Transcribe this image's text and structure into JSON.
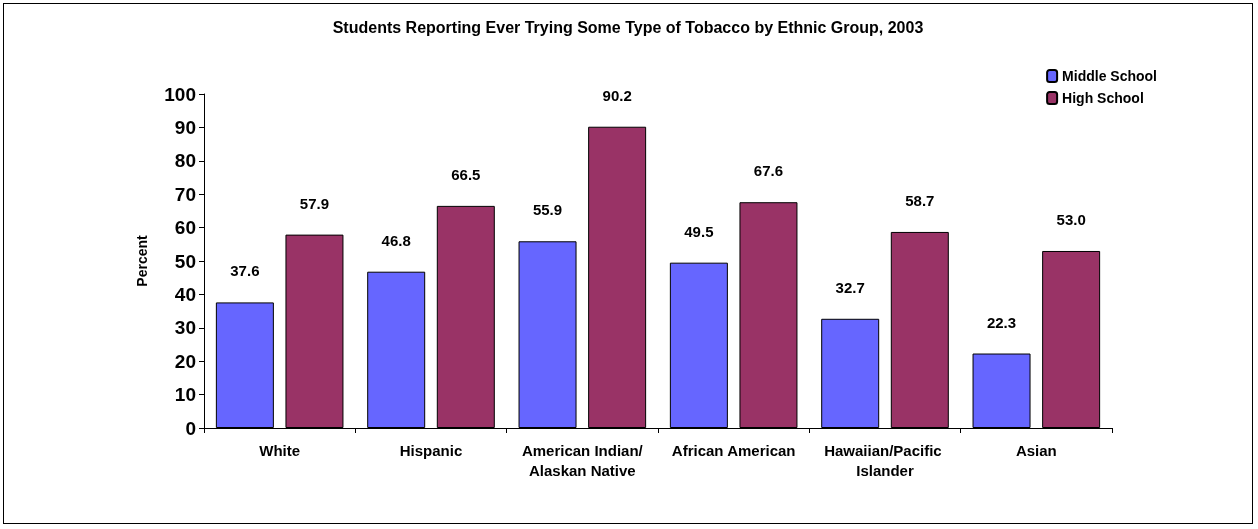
{
  "chart_data": {
    "type": "bar",
    "title": "Students Reporting Ever Trying Some Type of Tobacco by Ethnic Group, 2003",
    "ylabel": "Percent",
    "categories": [
      "White",
      "Hispanic",
      "American Indian/Alaskan Native",
      "African American",
      "Hawaiian/Pacific Islander",
      "Asian"
    ],
    "series": [
      {
        "name": "Middle School",
        "color": "#6666ff",
        "values": [
          37.6,
          46.8,
          55.9,
          49.5,
          32.7,
          22.3
        ],
        "value_labels": [
          "37.6",
          "46.8",
          "55.9",
          "49.5",
          "32.7",
          "22.3"
        ]
      },
      {
        "name": "High School",
        "color": "#993366",
        "values": [
          57.9,
          66.5,
          90.2,
          67.6,
          58.7,
          53.0
        ],
        "value_labels": [
          "57.9",
          "66.5",
          "90.2",
          "67.6",
          "58.7",
          "53.0"
        ]
      }
    ],
    "ylim": [
      0,
      100
    ],
    "yticks": [
      0,
      10,
      20,
      30,
      40,
      50,
      60,
      70,
      80,
      90,
      100
    ],
    "grid": false,
    "legend": "top right"
  }
}
